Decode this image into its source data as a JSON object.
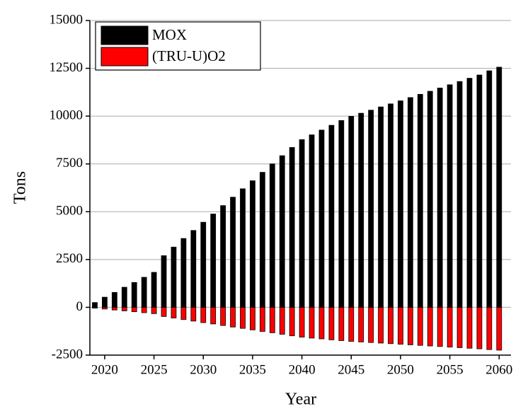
{
  "chart_data": {
    "type": "bar",
    "x_label": "Year",
    "y_label": "Tons",
    "x": [
      2019,
      2020,
      2021,
      2022,
      2023,
      2024,
      2025,
      2026,
      2027,
      2028,
      2029,
      2030,
      2031,
      2032,
      2033,
      2034,
      2035,
      2036,
      2037,
      2038,
      2039,
      2040,
      2041,
      2042,
      2043,
      2044,
      2045,
      2046,
      2047,
      2048,
      2049,
      2050,
      2051,
      2052,
      2053,
      2054,
      2055,
      2056,
      2057,
      2058,
      2059,
      2060
    ],
    "series": [
      {
        "name": "MOX",
        "color": "#000000",
        "values": [
          250,
          530,
          780,
          1050,
          1300,
          1570,
          1830,
          2700,
          3150,
          3600,
          4020,
          4450,
          4880,
          5320,
          5760,
          6200,
          6620,
          7060,
          7500,
          7930,
          8360,
          8770,
          9020,
          9270,
          9520,
          9770,
          9990,
          10150,
          10310,
          10480,
          10640,
          10800,
          10970,
          11140,
          11300,
          11470,
          11640,
          11810,
          11980,
          12150,
          12370,
          12560
        ]
      },
      {
        "name": "(TRU-U)O2",
        "color": "#ff0000",
        "values": [
          -45,
          -90,
          -140,
          -185,
          -230,
          -280,
          -330,
          -480,
          -560,
          -640,
          -720,
          -800,
          -870,
          -950,
          -1030,
          -1100,
          -1180,
          -1260,
          -1330,
          -1410,
          -1490,
          -1560,
          -1610,
          -1650,
          -1700,
          -1740,
          -1780,
          -1810,
          -1840,
          -1870,
          -1900,
          -1930,
          -1960,
          -1990,
          -2020,
          -2050,
          -2080,
          -2110,
          -2140,
          -2170,
          -2210,
          -2240
        ]
      }
    ],
    "xlim": [
      2018.5,
      2061.2
    ],
    "xticks": [
      2020,
      2025,
      2030,
      2035,
      2040,
      2045,
      2050,
      2055,
      2060
    ],
    "ylim": [
      -2500,
      15000
    ],
    "yticks": [
      -2500,
      0,
      2500,
      5000,
      7500,
      10000,
      12500,
      15000
    ],
    "grid": true,
    "legend": "upper left"
  }
}
